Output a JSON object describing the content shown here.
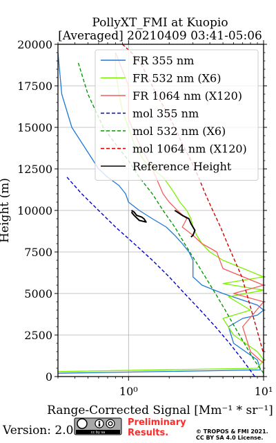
{
  "title_line1": "PollyXT_FMI at Kuopio",
  "title_line2": "[Averaged] 20210409 03:41-05:06",
  "footer": {
    "version": "Version: 2.0",
    "license_badge": "cc by sa",
    "preliminary_line1": "Preliminary",
    "preliminary_line2": "Results.",
    "copyright_line1": "© TROPOS & FMI 2021.",
    "copyright_line2": "CC BY SA 4.0 License."
  },
  "colors": {
    "fr355": "#1f78d4",
    "fr532": "#7cf000",
    "fr1064": "#f55a5a",
    "mol355": "#0000cc",
    "mol532": "#009900",
    "mol1064": "#cc0000",
    "ref": "#000000",
    "grid": "#b0b0b0"
  },
  "chart_data": {
    "type": "line",
    "title": "PollyXT_FMI at Kuopio [Averaged] 20210409 03:41-05:06",
    "xlabel": "Range-Corrected Signal [Mm⁻¹ * sr⁻¹]",
    "ylabel": "Height (m)",
    "xscale": "log",
    "xlim": [
      0.3,
      10
    ],
    "ylim": [
      0,
      20000
    ],
    "xticks": [
      1,
      10
    ],
    "xtick_labels": [
      "10⁰",
      "10¹"
    ],
    "yticks": [
      0,
      2500,
      5000,
      7500,
      10000,
      12500,
      15000,
      17500,
      20000
    ],
    "ytick_labels": [
      "0",
      "2500",
      "5000",
      "7500",
      "10000",
      "12500",
      "15000",
      "17500",
      "20000"
    ],
    "grid": true,
    "legend_position": "top-right",
    "series": [
      {
        "name": "FR 355 nm",
        "style": "solid",
        "x": [
          0.3,
          9.5,
          9.0,
          6.0,
          5.5,
          7.0,
          9.0,
          10.0,
          9.0,
          5.0,
          3.5,
          3.0,
          3.0,
          3.0,
          2.8,
          2.5,
          2.2,
          1.9,
          1.5,
          1.2,
          1.0,
          0.95,
          0.85,
          0.7,
          0.6,
          0.5,
          0.38,
          0.32,
          0.3
        ],
        "y": [
          200,
          400,
          1000,
          2000,
          3000,
          3500,
          3700,
          4000,
          4300,
          5000,
          5500,
          6000,
          6500,
          7000,
          7500,
          8000,
          8500,
          9000,
          9500,
          10000,
          10500,
          11000,
          11500,
          12000,
          12500,
          13500,
          15000,
          17000,
          19500
        ]
      },
      {
        "name": "FR 532 nm (X6)",
        "style": "solid",
        "x": [
          0.3,
          9.0,
          10.0,
          9.0,
          6.0,
          5.0,
          8.0,
          5.5,
          10.0,
          5.0,
          10.0,
          5.0,
          4.0,
          3.5,
          3.2,
          3.0,
          2.9,
          2.7,
          2.4,
          2.2,
          2.0,
          1.8,
          1.5,
          1.3,
          1.1,
          1.0,
          0.9,
          0.85,
          0.8,
          0.8
        ],
        "y": [
          300,
          500,
          1000,
          1500,
          2500,
          3500,
          4000,
          4800,
          5200,
          5600,
          6000,
          7000,
          7500,
          8000,
          8500,
          9000,
          9500,
          10000,
          10500,
          11000,
          11500,
          12000,
          12500,
          13000,
          14000,
          15000,
          16000,
          17000,
          18500,
          19500
        ]
      },
      {
        "name": "FR 1064 nm (X120)",
        "style": "solid",
        "x": [
          10.0,
          8.0,
          7.0,
          10.0,
          6.0,
          10.0,
          5.0,
          4.5,
          3.5,
          3.0,
          2.5,
          2.7,
          2.3,
          2.0,
          1.8,
          1.5,
          1.2,
          1.0,
          1.0,
          0.8
        ],
        "y": [
          800,
          1500,
          3000,
          4500,
          5000,
          5500,
          6500,
          7500,
          8000,
          8500,
          9000,
          9500,
          10000,
          10500,
          11000,
          12500,
          14000,
          15500,
          17500,
          19500
        ]
      },
      {
        "name": "mol 355 nm",
        "style": "dashed",
        "x": [
          8.6,
          7.0,
          5.6,
          4.4,
          3.4,
          2.6,
          2.0,
          1.5,
          1.1,
          0.8,
          0.6,
          0.45,
          0.35
        ],
        "y": [
          0,
          1000,
          2000,
          3000,
          4000,
          5000,
          6000,
          7000,
          8000,
          9000,
          10000,
          11000,
          12000
        ]
      },
      {
        "name": "mol 532 nm (X6)",
        "style": "dashed",
        "x": [
          10.0,
          8.5,
          7.2,
          6.1,
          5.2,
          4.4,
          3.7,
          3.1,
          2.6,
          2.2,
          1.8,
          1.5,
          1.2,
          1.0,
          0.8,
          0.65,
          0.5,
          0.42
        ],
        "y": [
          200,
          1000,
          2000,
          3000,
          4000,
          5000,
          6000,
          7000,
          8000,
          9000,
          10000,
          11000,
          12000,
          13000,
          14000,
          15000,
          17000,
          19000
        ]
      },
      {
        "name": "mol 1064 nm (X120)",
        "style": "dashed",
        "x": [
          9.9,
          8.8,
          7.8,
          6.9,
          6.1,
          5.4,
          4.8,
          4.2,
          3.7,
          3.3,
          2.9,
          2.5,
          2.2,
          1.9,
          1.6,
          1.4,
          1.2,
          1.05,
          0.9
        ],
        "y": [
          1500,
          3000,
          4500,
          6000,
          7000,
          8000,
          9000,
          10000,
          11000,
          12000,
          13000,
          14000,
          15000,
          16000,
          17000,
          18000,
          19000,
          19500,
          20000
        ]
      },
      {
        "name": "Reference Height",
        "style": "solid",
        "x": [
          1.05,
          1.1,
          1.15,
          1.25,
          1.3,
          1.35,
          1.2,
          1.1,
          1.05
        ],
        "y": [
          10000,
          9900,
          9700,
          9600,
          9500,
          9300,
          9400,
          9700,
          9900
        ]
      },
      {
        "name": "",
        "style": "solid",
        "x": [
          2.2,
          2.3,
          2.5,
          2.8,
          2.9,
          3.1,
          3.0,
          2.9
        ],
        "y": [
          10000,
          9900,
          9700,
          9500,
          9200,
          8800,
          8500,
          8400
        ]
      }
    ]
  }
}
